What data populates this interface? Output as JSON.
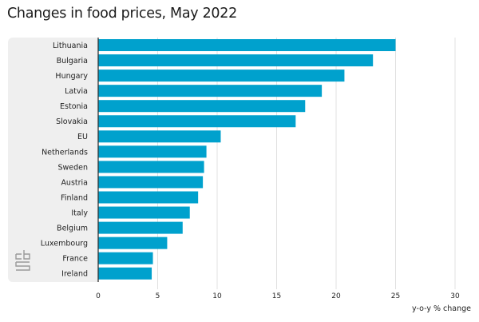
{
  "chart_data": {
    "type": "bar",
    "orientation": "horizontal",
    "title": "Changes in food prices, May 2022",
    "categories": [
      "Lithuania",
      "Bulgaria",
      "Hungary",
      "Latvia",
      "Estonia",
      "Slovakia",
      "EU",
      "Netherlands",
      "Sweden",
      "Austria",
      "Finland",
      "Italy",
      "Belgium",
      "Luxembourg",
      "France",
      "Ireland"
    ],
    "values": [
      25.0,
      23.1,
      20.7,
      18.8,
      17.4,
      16.6,
      10.3,
      9.1,
      8.9,
      8.8,
      8.4,
      7.7,
      7.1,
      5.8,
      4.6,
      4.5
    ],
    "xlabel": "y-o-y % change",
    "ylabel": "",
    "xlim": [
      0,
      30
    ],
    "xticks": [
      "0",
      "5",
      "10",
      "15",
      "20",
      "25",
      "30"
    ],
    "grid": true,
    "bar_color": "#00a1cd",
    "logo_text": "cbs"
  }
}
